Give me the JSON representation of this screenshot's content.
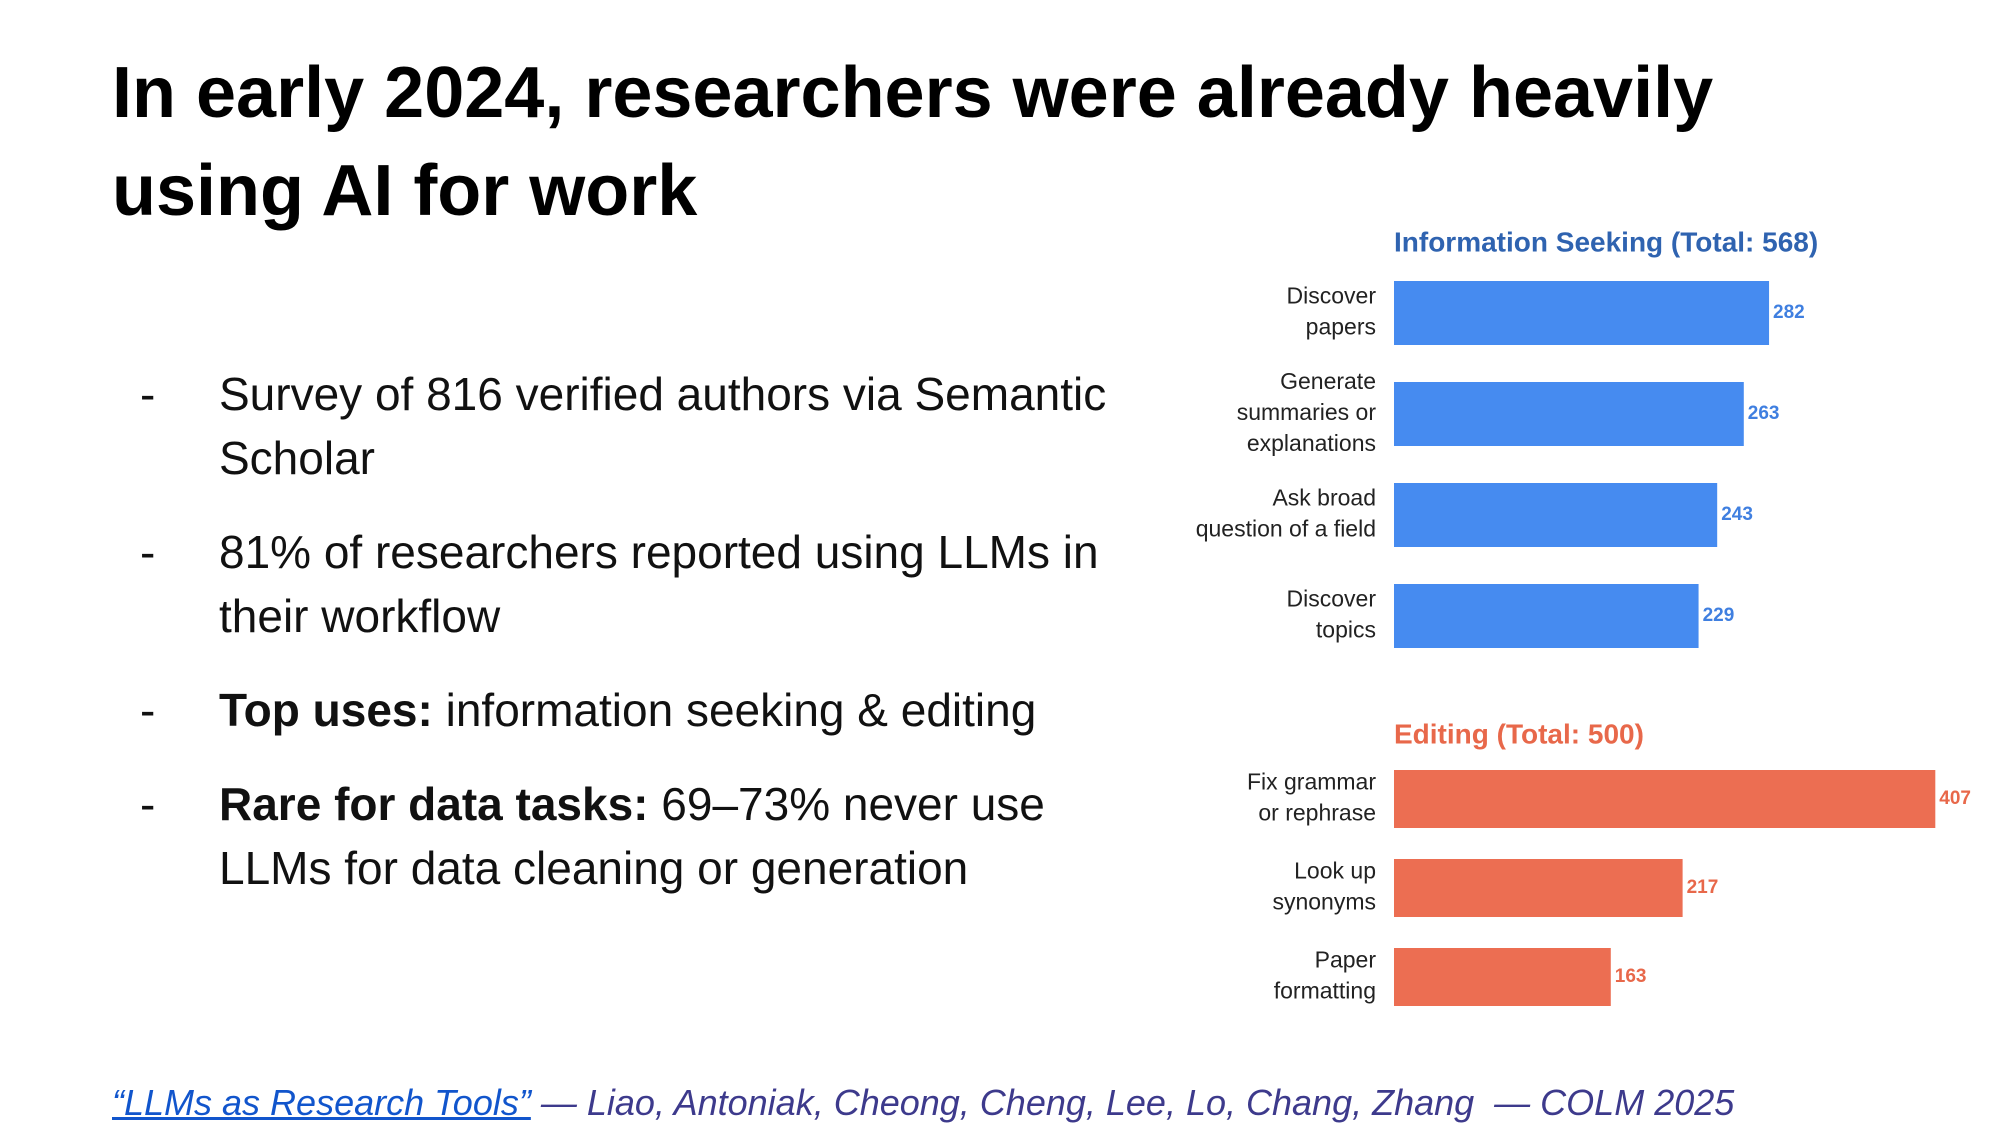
{
  "title": "In early 2024, researchers were already heavily using AI for work",
  "bullets": [
    {
      "text": "Survey of 816 verified authors via Semantic Scholar"
    },
    {
      "text": "81% of researchers reported using LLMs in their workflow"
    },
    {
      "bold": "Top uses:",
      "text": "information seeking & editing"
    },
    {
      "bold": "Rare for data tasks:",
      "text": "69–73% never use LLMs for data cleaning or generation"
    }
  ],
  "citation": {
    "link": "“LLMs as Research Tools”",
    "text": "— Liao, Antoniak, Cheong, Cheng, Lee, Lo, Chang, Zhang  — COLM 2025"
  },
  "chart_data": [
    {
      "type": "bar",
      "orientation": "horizontal",
      "title": "Information Seeking (Total: 568)",
      "title_color": "#2f63b0",
      "categories": [
        [
          "Discover",
          "papers"
        ],
        [
          "Generate",
          "summaries or",
          "explanations"
        ],
        [
          "Ask broad",
          "question of a field"
        ],
        [
          "Discover",
          "topics"
        ]
      ],
      "values": [
        282,
        263,
        243,
        229
      ],
      "color": "#468bf0",
      "label_color": "#3f7fe0"
    },
    {
      "type": "bar",
      "orientation": "horizontal",
      "title": "Editing (Total: 500)",
      "title_color": "#e8684a",
      "categories": [
        [
          "Fix grammar",
          "or rephrase"
        ],
        [
          "Look up",
          "synonyms"
        ],
        [
          "Paper",
          "formatting"
        ]
      ],
      "values": [
        407,
        217,
        163
      ],
      "color": "#ec6e52",
      "label_color": "#e8684a"
    }
  ]
}
